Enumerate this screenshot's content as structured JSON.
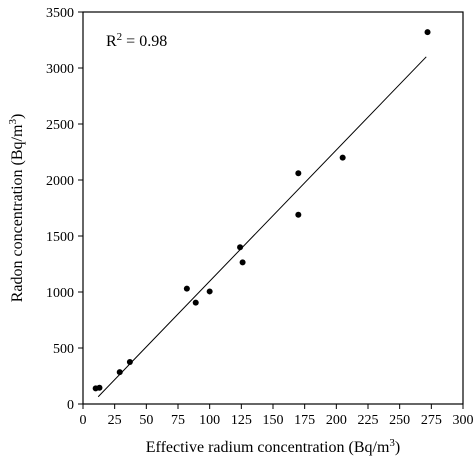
{
  "chart_data": {
    "type": "scatter",
    "xlabel": "Effective radium concentration (Bq/m",
    "xlabel_sup": "3",
    "xlabel_end": ")",
    "ylabel": "Radon concentration (Bq/m",
    "ylabel_sup": "3",
    "ylabel_end": ")",
    "xlim": [
      0,
      300
    ],
    "ylim": [
      0,
      3500
    ],
    "xticks": [
      "0",
      "25",
      "50",
      "75",
      "100",
      "125",
      "150",
      "175",
      "200",
      "225",
      "250",
      "275",
      "300"
    ],
    "yticks": [
      "0",
      "500",
      "1000",
      "1500",
      "2000",
      "2500",
      "3000",
      "3500"
    ],
    "annotation": {
      "prefix": "R",
      "sup": "2",
      "suffix": " = 0.98"
    },
    "points": [
      {
        "x": 10,
        "y": 140
      },
      {
        "x": 13,
        "y": 145
      },
      {
        "x": 29,
        "y": 285
      },
      {
        "x": 37,
        "y": 375
      },
      {
        "x": 82,
        "y": 1030
      },
      {
        "x": 89,
        "y": 905
      },
      {
        "x": 100,
        "y": 1005
      },
      {
        "x": 124,
        "y": 1400
      },
      {
        "x": 126,
        "y": 1265
      },
      {
        "x": 170,
        "y": 2060
      },
      {
        "x": 170,
        "y": 1690
      },
      {
        "x": 205,
        "y": 2200
      },
      {
        "x": 272,
        "y": 3320
      }
    ],
    "fit_line": {
      "x": [
        12,
        271
      ],
      "y": [
        65,
        3100
      ]
    },
    "grid": false,
    "legend": "none"
  }
}
